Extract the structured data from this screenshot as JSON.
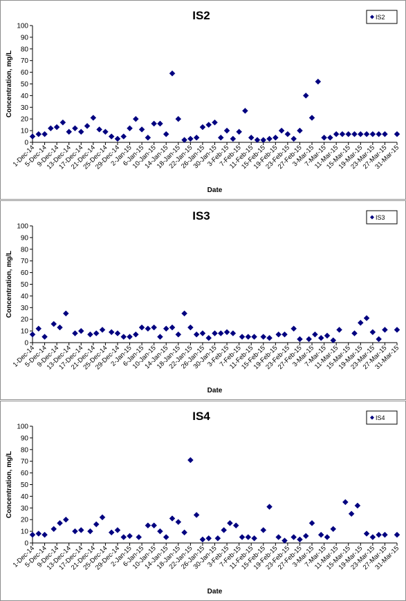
{
  "chart_data": [
    {
      "type": "scatter",
      "title": "IS2",
      "xlabel": "Date",
      "ylabel": "Concentration, mg/L",
      "ylim": [
        0,
        100
      ],
      "yticks": [
        "0",
        "10",
        "20",
        "30",
        "40",
        "50",
        "60",
        "70",
        "80",
        "90",
        "100"
      ],
      "xlim": [
        "2014-12-01",
        "2015-03-31"
      ],
      "xticks": [
        "1-Dec-14",
        "5-Dec-14",
        "9-Dec-14",
        "13-Dec-14",
        "17-Dec-14",
        "21-Dec-14",
        "25-Dec-14",
        "29-Dec-14",
        "2-Jan-15",
        "6-Jan-15",
        "10-Jan-15",
        "14-Jan-15",
        "18-Jan-15",
        "22-Jan-15",
        "26-Jan-15",
        "30-Jan-15",
        "3-Feb-15",
        "7-Feb-15",
        "11-Feb-15",
        "15-Feb-15",
        "19-Feb-15",
        "23-Feb-15",
        "27-Feb-15",
        "3-Mar-15",
        "7-Mar-15",
        "11-Mar-15",
        "15-Mar-15",
        "19-Mar-15",
        "23-Mar-15",
        "27-Mar-15",
        "31-Mar-15"
      ],
      "grid": false,
      "legend": "top-right",
      "marker": "diamond",
      "color": "#000080",
      "series": [
        {
          "name": "IS2",
          "x": [
            "2014-12-01",
            "2014-12-03",
            "2014-12-05",
            "2014-12-07",
            "2014-12-09",
            "2014-12-11",
            "2014-12-13",
            "2014-12-15",
            "2014-12-17",
            "2014-12-19",
            "2014-12-21",
            "2014-12-23",
            "2014-12-25",
            "2014-12-27",
            "2014-12-29",
            "2014-12-31",
            "2015-01-02",
            "2015-01-04",
            "2015-01-06",
            "2015-01-08",
            "2015-01-10",
            "2015-01-12",
            "2015-01-14",
            "2015-01-16",
            "2015-01-18",
            "2015-01-20",
            "2015-01-22",
            "2015-01-24",
            "2015-01-26",
            "2015-01-28",
            "2015-01-30",
            "2015-02-01",
            "2015-02-03",
            "2015-02-05",
            "2015-02-07",
            "2015-02-09",
            "2015-02-11",
            "2015-02-13",
            "2015-02-15",
            "2015-02-17",
            "2015-02-19",
            "2015-02-21",
            "2015-02-23",
            "2015-02-25",
            "2015-02-27",
            "2015-03-01",
            "2015-03-03",
            "2015-03-05",
            "2015-03-07",
            "2015-03-09",
            "2015-03-11",
            "2015-03-13",
            "2015-03-15",
            "2015-03-17",
            "2015-03-19",
            "2015-03-21",
            "2015-03-23",
            "2015-03-25",
            "2015-03-27",
            "2015-03-31"
          ],
          "y": [
            5,
            7,
            7,
            12,
            13,
            17,
            9,
            12,
            9,
            14,
            21,
            11,
            9,
            5,
            3,
            5,
            12,
            20,
            11,
            4,
            16,
            16,
            7,
            59,
            20,
            2,
            3,
            4,
            13,
            15,
            17,
            4,
            10,
            3,
            9,
            27,
            4,
            2,
            2,
            3,
            4,
            10,
            7,
            3,
            10,
            40,
            21,
            52,
            4,
            4,
            7,
            7,
            7,
            7,
            7,
            7,
            7,
            7,
            7,
            7
          ]
        }
      ]
    },
    {
      "type": "scatter",
      "title": "IS3",
      "xlabel": "Date",
      "ylabel": "Concentration, mg/L",
      "ylim": [
        0,
        100
      ],
      "yticks": [
        "0",
        "10",
        "20",
        "30",
        "40",
        "50",
        "60",
        "70",
        "80",
        "90",
        "100"
      ],
      "xlim": [
        "2014-12-01",
        "2015-03-31"
      ],
      "xticks": [
        "1-Dec-14",
        "5-Dec-14",
        "9-Dec-14",
        "13-Dec-14",
        "17-Dec-14",
        "21-Dec-14",
        "25-Dec-14",
        "29-Dec-14",
        "2-Jan-15",
        "6-Jan-15",
        "10-Jan-15",
        "14-Jan-15",
        "18-Jan-15",
        "22-Jan-15",
        "26-Jan-15",
        "30-Jan-15",
        "3-Feb-15",
        "7-Feb-15",
        "11-Feb-15",
        "15-Feb-15",
        "19-Feb-15",
        "23-Feb-15",
        "27-Feb-15",
        "3-Mar-15",
        "7-Mar-15",
        "11-Mar-15",
        "15-Mar-15",
        "19-Mar-15",
        "23-Mar-15",
        "27-Mar-15",
        "31-Mar-15"
      ],
      "grid": false,
      "legend": "top-right",
      "marker": "diamond",
      "color": "#000080",
      "series": [
        {
          "name": "IS3",
          "x": [
            "2014-12-01",
            "2014-12-03",
            "2014-12-05",
            "2014-12-08",
            "2014-12-10",
            "2014-12-12",
            "2014-12-15",
            "2014-12-17",
            "2014-12-20",
            "2014-12-22",
            "2014-12-24",
            "2014-12-27",
            "2014-12-29",
            "2014-12-31",
            "2015-01-02",
            "2015-01-04",
            "2015-01-06",
            "2015-01-08",
            "2015-01-10",
            "2015-01-12",
            "2015-01-14",
            "2015-01-16",
            "2015-01-18",
            "2015-01-20",
            "2015-01-22",
            "2015-01-24",
            "2015-01-26",
            "2015-01-28",
            "2015-01-30",
            "2015-02-01",
            "2015-02-03",
            "2015-02-05",
            "2015-02-08",
            "2015-02-10",
            "2015-02-12",
            "2015-02-15",
            "2015-02-17",
            "2015-02-20",
            "2015-02-22",
            "2015-02-25",
            "2015-02-27",
            "2015-03-02",
            "2015-03-04",
            "2015-03-06",
            "2015-03-08",
            "2015-03-10",
            "2015-03-12",
            "2015-03-17",
            "2015-03-19",
            "2015-03-21",
            "2015-03-23",
            "2015-03-25",
            "2015-03-27",
            "2015-03-31"
          ],
          "y": [
            7,
            12,
            5,
            16,
            13,
            25,
            8,
            10,
            7,
            8,
            11,
            9,
            8,
            5,
            5,
            7,
            13,
            12,
            13,
            5,
            12,
            13,
            7,
            25,
            13,
            7,
            8,
            4,
            8,
            8,
            9,
            8,
            5,
            5,
            5,
            5,
            4,
            7,
            7,
            12,
            3,
            3,
            7,
            4,
            6,
            2,
            11,
            8,
            17,
            21,
            9,
            3,
            11,
            11
          ]
        }
      ]
    },
    {
      "type": "scatter",
      "title": "IS4",
      "xlabel": "Date",
      "ylabel": "Concentration, mg/L",
      "ylim": [
        0,
        100
      ],
      "yticks": [
        "0",
        "10",
        "20",
        "30",
        "40",
        "50",
        "60",
        "70",
        "80",
        "90",
        "100"
      ],
      "xlim": [
        "2014-12-01",
        "2015-03-31"
      ],
      "xticks": [
        "1-Dec-14",
        "5-Dec-14",
        "9-Dec-14",
        "13-Dec-14",
        "17-Dec-14",
        "21-Dec-14",
        "25-Dec-14",
        "29-Dec-14",
        "2-Jan-15",
        "6-Jan-15",
        "10-Jan-15",
        "14-Jan-15",
        "18-Jan-15",
        "22-Jan-15",
        "26-Jan-15",
        "30-Jan-15",
        "3-Feb-15",
        "7-Feb-15",
        "11-Feb-15",
        "15-Feb-15",
        "19-Feb-15",
        "23-Feb-15",
        "27-Feb-15",
        "3-Mar-15",
        "7-Mar-15",
        "11-Mar-15",
        "15-Mar-15",
        "19-Mar-15",
        "23-Mar-15",
        "27-Mar-15",
        "31-Mar-15"
      ],
      "grid": false,
      "legend": "top-right",
      "marker": "diamond",
      "color": "#000080",
      "series": [
        {
          "name": "IS4",
          "x": [
            "2014-12-01",
            "2014-12-03",
            "2014-12-05",
            "2014-12-08",
            "2014-12-10",
            "2014-12-12",
            "2014-12-15",
            "2014-12-17",
            "2014-12-20",
            "2014-12-22",
            "2014-12-24",
            "2014-12-27",
            "2014-12-29",
            "2014-12-31",
            "2015-01-02",
            "2015-01-05",
            "2015-01-08",
            "2015-01-10",
            "2015-01-12",
            "2015-01-14",
            "2015-01-16",
            "2015-01-18",
            "2015-01-20",
            "2015-01-22",
            "2015-01-24",
            "2015-01-26",
            "2015-01-28",
            "2015-01-31",
            "2015-02-02",
            "2015-02-04",
            "2015-02-06",
            "2015-02-08",
            "2015-02-10",
            "2015-02-12",
            "2015-02-15",
            "2015-02-17",
            "2015-02-20",
            "2015-02-22",
            "2015-02-25",
            "2015-02-27",
            "2015-03-01",
            "2015-03-03",
            "2015-03-06",
            "2015-03-08",
            "2015-03-10",
            "2015-03-14",
            "2015-03-16",
            "2015-03-18",
            "2015-03-21",
            "2015-03-23",
            "2015-03-25",
            "2015-03-27",
            "2015-03-31"
          ],
          "y": [
            7,
            8,
            7,
            12,
            17,
            20,
            10,
            11,
            10,
            16,
            22,
            9,
            11,
            5,
            6,
            5,
            15,
            15,
            10,
            5,
            21,
            18,
            9,
            71,
            24,
            3,
            4,
            4,
            11,
            17,
            15,
            5,
            5,
            4,
            11,
            31,
            5,
            2,
            5,
            3,
            6,
            17,
            7,
            5,
            12,
            35,
            25,
            32,
            8,
            5,
            7,
            7,
            7
          ]
        }
      ]
    }
  ]
}
